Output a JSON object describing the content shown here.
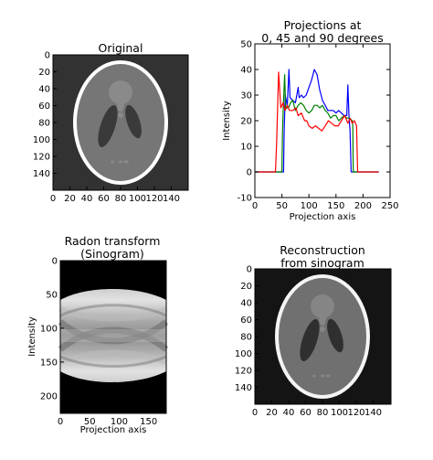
{
  "panels": {
    "original": {
      "title": "Original",
      "x_ticks": [
        "0",
        "20",
        "40",
        "60",
        "80",
        "100",
        "120",
        "140"
      ],
      "y_ticks": [
        "0",
        "20",
        "40",
        "60",
        "80",
        "100",
        "120",
        "140"
      ]
    },
    "sinogram": {
      "title": [
        "Radon transform",
        "(Sinogram)"
      ],
      "xlabel": "Projection axis",
      "ylabel": "Intensity",
      "x_ticks": [
        "0",
        "50",
        "100",
        "150"
      ],
      "y_ticks": [
        "0",
        "50",
        "100",
        "150",
        "200"
      ]
    },
    "reconstruction": {
      "title": [
        "Reconstruction",
        "from sinogram"
      ],
      "x_ticks": [
        "0",
        "20",
        "40",
        "60",
        "80",
        "100",
        "120",
        "140"
      ],
      "y_ticks": [
        "0",
        "20",
        "40",
        "60",
        "80",
        "100",
        "120",
        "140"
      ]
    }
  },
  "chart_data": {
    "type": "line",
    "title": [
      "Projections at",
      "0, 45 and 90 degrees"
    ],
    "xlabel": "Projection axis",
    "ylabel": "Intensity",
    "xlim": [
      0,
      250
    ],
    "ylim": [
      -10,
      50
    ],
    "x_ticks": [
      "0",
      "50",
      "100",
      "150",
      "200",
      "250"
    ],
    "y_ticks": [
      "-10",
      "0",
      "10",
      "20",
      "30",
      "40",
      "50"
    ],
    "series": [
      {
        "color": "#0000ff",
        "points": [
          [
            0,
            0
          ],
          [
            53,
            0
          ],
          [
            54,
            15
          ],
          [
            56,
            30
          ],
          [
            58,
            28
          ],
          [
            60,
            26
          ],
          [
            63,
            40
          ],
          [
            65,
            29
          ],
          [
            70,
            28
          ],
          [
            75,
            27
          ],
          [
            80,
            33
          ],
          [
            82,
            29
          ],
          [
            86,
            30
          ],
          [
            90,
            29
          ],
          [
            95,
            30
          ],
          [
            100,
            33
          ],
          [
            105,
            36
          ],
          [
            110,
            40
          ],
          [
            115,
            38
          ],
          [
            120,
            32
          ],
          [
            125,
            28
          ],
          [
            130,
            26
          ],
          [
            135,
            24
          ],
          [
            140,
            24
          ],
          [
            145,
            24
          ],
          [
            150,
            23
          ],
          [
            155,
            24
          ],
          [
            160,
            23
          ],
          [
            165,
            22
          ],
          [
            170,
            22
          ],
          [
            172,
            34
          ],
          [
            174,
            22
          ],
          [
            176,
            16
          ],
          [
            178,
            0
          ],
          [
            229,
            0
          ]
        ]
      },
      {
        "color": "#008000",
        "points": [
          [
            0,
            0
          ],
          [
            50,
            0
          ],
          [
            51,
            15
          ],
          [
            53,
            28
          ],
          [
            55,
            38
          ],
          [
            57,
            25
          ],
          [
            62,
            25
          ],
          [
            66,
            27
          ],
          [
            70,
            28
          ],
          [
            75,
            24
          ],
          [
            80,
            26
          ],
          [
            85,
            27
          ],
          [
            90,
            26
          ],
          [
            95,
            24
          ],
          [
            100,
            23
          ],
          [
            105,
            24
          ],
          [
            110,
            26
          ],
          [
            115,
            26
          ],
          [
            120,
            25
          ],
          [
            125,
            26
          ],
          [
            130,
            24
          ],
          [
            135,
            23
          ],
          [
            140,
            21
          ],
          [
            145,
            22
          ],
          [
            150,
            22
          ],
          [
            155,
            20
          ],
          [
            160,
            21
          ],
          [
            165,
            22
          ],
          [
            170,
            21
          ],
          [
            175,
            21
          ],
          [
            180,
            20
          ],
          [
            181,
            18
          ],
          [
            182,
            0
          ],
          [
            229,
            0
          ]
        ]
      },
      {
        "color": "#ff0000",
        "points": [
          [
            0,
            0
          ],
          [
            38,
            0
          ],
          [
            40,
            10
          ],
          [
            44,
            39
          ],
          [
            48,
            25
          ],
          [
            52,
            27
          ],
          [
            56,
            24
          ],
          [
            60,
            26
          ],
          [
            64,
            24
          ],
          [
            70,
            24
          ],
          [
            76,
            25
          ],
          [
            80,
            22
          ],
          [
            86,
            23
          ],
          [
            92,
            20
          ],
          [
            96,
            20
          ],
          [
            100,
            18
          ],
          [
            106,
            17
          ],
          [
            112,
            18
          ],
          [
            118,
            17
          ],
          [
            124,
            16
          ],
          [
            130,
            18
          ],
          [
            136,
            20
          ],
          [
            142,
            19
          ],
          [
            148,
            18
          ],
          [
            154,
            18
          ],
          [
            160,
            20
          ],
          [
            166,
            22
          ],
          [
            172,
            19
          ],
          [
            176,
            21
          ],
          [
            180,
            19
          ],
          [
            184,
            20
          ],
          [
            188,
            18
          ],
          [
            190,
            0
          ],
          [
            229,
            0
          ]
        ]
      }
    ]
  }
}
